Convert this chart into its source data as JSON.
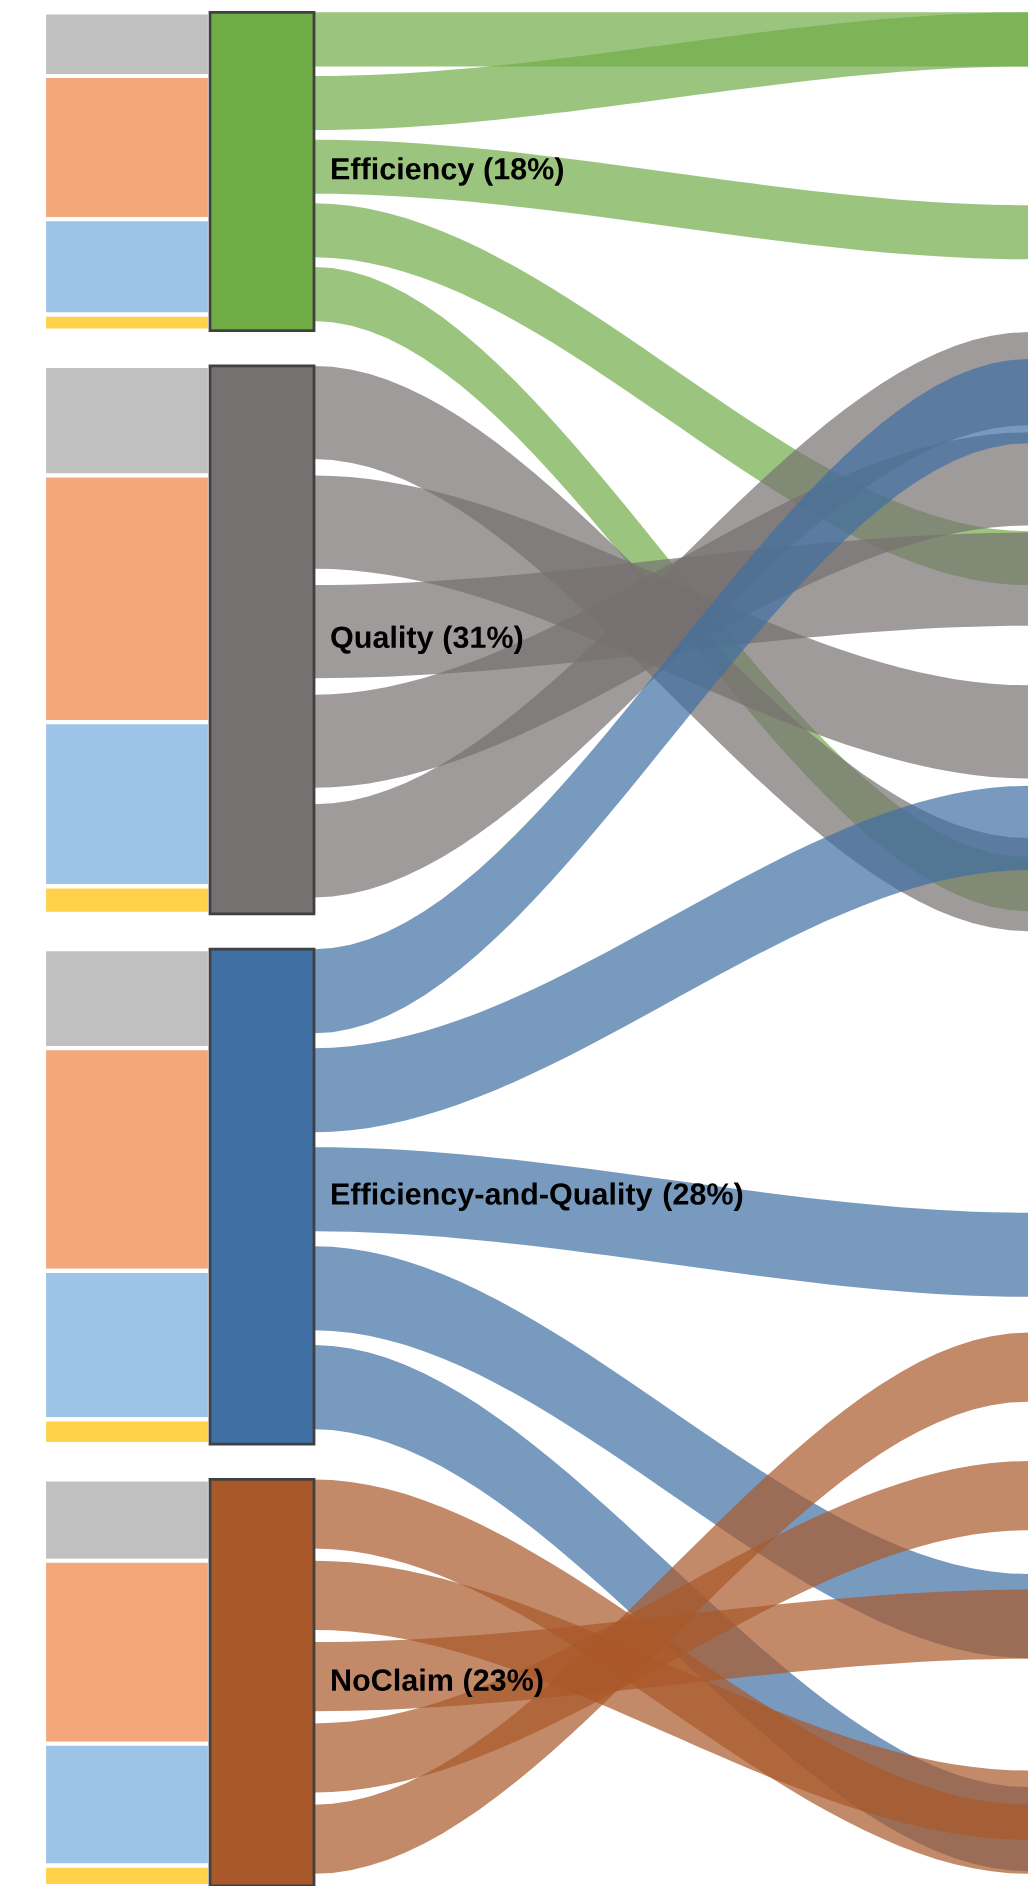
{
  "chart_data": {
    "type": "other",
    "categories": [
      "Efficiency",
      "Quality",
      "Efficiency-and-Quality",
      "NoClaim"
    ],
    "values": [
      18,
      31,
      28,
      23
    ],
    "value_labels": [
      "(18%)",
      "(31%)",
      "(28%)",
      "(23%)"
    ],
    "colors": [
      "#70ad47",
      "#767171",
      "#3f6fa3",
      "#a9582a"
    ]
  }
}
